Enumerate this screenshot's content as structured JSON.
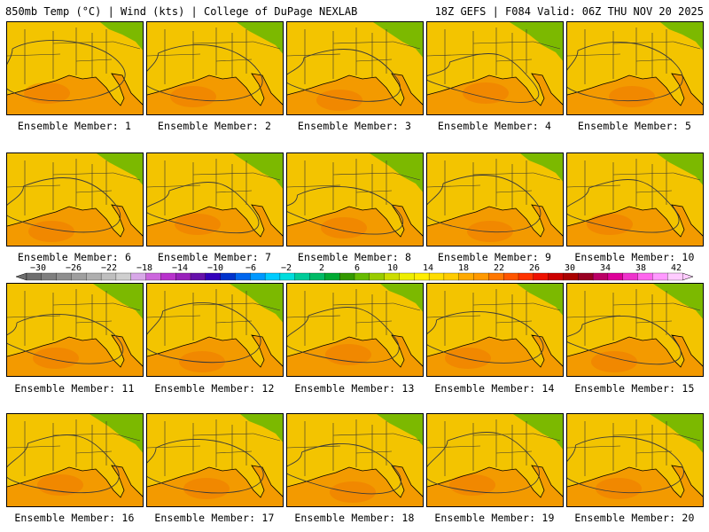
{
  "header": {
    "left": "850mb Temp (°C) | Wind (kts) | College of DuPage NEXLAB",
    "right": "18Z GEFS | F084 Valid: 06Z THU NOV 20 2025"
  },
  "members": [
    "Ensemble Member: 1",
    "Ensemble Member: 2",
    "Ensemble Member: 3",
    "Ensemble Member: 4",
    "Ensemble Member: 5",
    "Ensemble Member: 6",
    "Ensemble Member: 7",
    "Ensemble Member: 8",
    "Ensemble Member: 9",
    "Ensemble Member: 10",
    "Ensemble Member: 11",
    "Ensemble Member: 12",
    "Ensemble Member: 13",
    "Ensemble Member: 14",
    "Ensemble Member: 15",
    "Ensemble Member: 16",
    "Ensemble Member: 17",
    "Ensemble Member: 18",
    "Ensemble Member: 19",
    "Ensemble Member: 20"
  ],
  "colorbar": {
    "labels": [
      "−30",
      "−26",
      "−22",
      "−18",
      "−14",
      "−10",
      "−6",
      "−2",
      "2",
      "6",
      "10",
      "14",
      "18",
      "22",
      "26",
      "30",
      "34",
      "38",
      "42"
    ],
    "colors": [
      "#6f6f6f",
      "#7f7f7f",
      "#8f8f8f",
      "#9f9f9f",
      "#afafaf",
      "#bfbfbf",
      "#cfcfcf",
      "#d8a8e8",
      "#cc66dd",
      "#b833cc",
      "#9922bb",
      "#6611aa",
      "#3300bb",
      "#0033cc",
      "#0066ee",
      "#0099ff",
      "#00ccff",
      "#00dddd",
      "#00cc99",
      "#00bb66",
      "#00aa33",
      "#339900",
      "#66bb00",
      "#99cc00",
      "#ccdd00",
      "#eeee00",
      "#ffee00",
      "#ffdd00",
      "#ffcc00",
      "#ffaa00",
      "#ff9900",
      "#ff7700",
      "#ff5500",
      "#ff3300",
      "#ee1100",
      "#cc0000",
      "#aa0000",
      "#990022",
      "#bb0066",
      "#dd0099",
      "#ee33cc",
      "#ff66ee",
      "#ff99ff",
      "#ffccff"
    ]
  },
  "map_colors": {
    "land_yellow": "#f3c400",
    "ocean_orange": "#f39a00",
    "green_ne": "#6fb800",
    "deep_orange": "#ee7a00"
  }
}
